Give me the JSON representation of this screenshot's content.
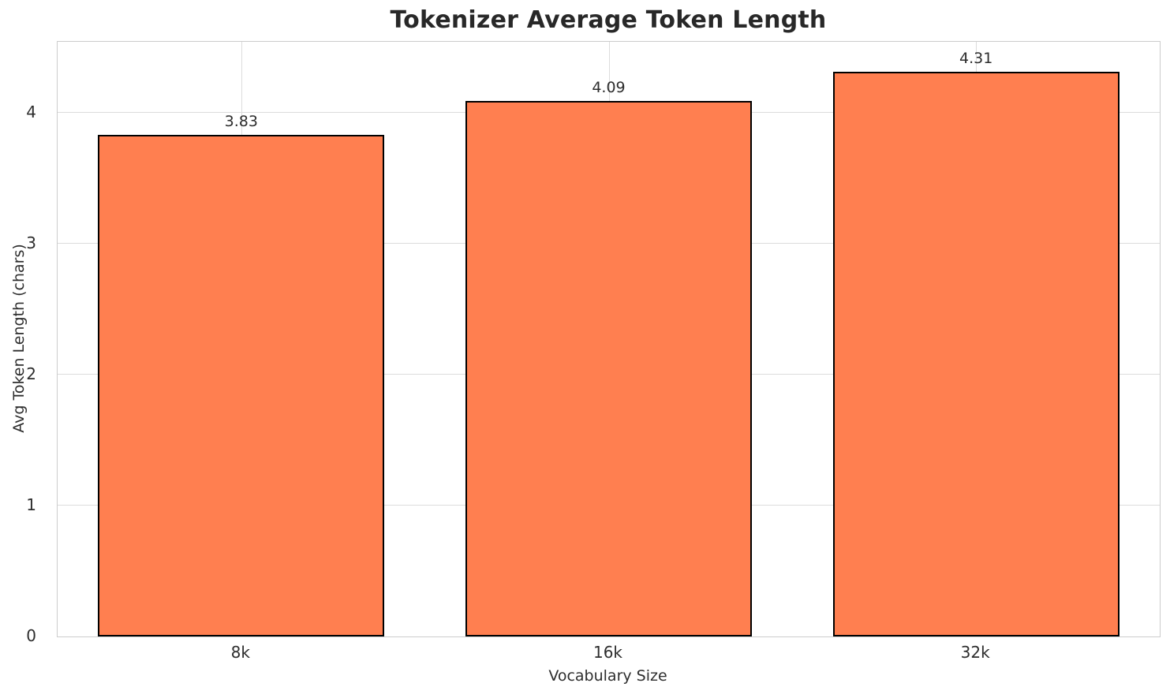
{
  "chart_data": {
    "type": "bar",
    "title": "Tokenizer Average Token Length",
    "xlabel": "Vocabulary Size",
    "ylabel": "Avg Token Length (chars)",
    "categories": [
      "8k",
      "16k",
      "32k"
    ],
    "values": [
      3.83,
      4.09,
      4.31
    ],
    "value_labels": [
      "3.83",
      "4.09",
      "4.31"
    ],
    "yticks": [
      0,
      1,
      2,
      3,
      4
    ],
    "ylim": [
      0,
      4.54
    ],
    "grid": true,
    "legend_position": "none",
    "bar_color": "#FF7F50",
    "bar_edge_color": "#000000"
  }
}
